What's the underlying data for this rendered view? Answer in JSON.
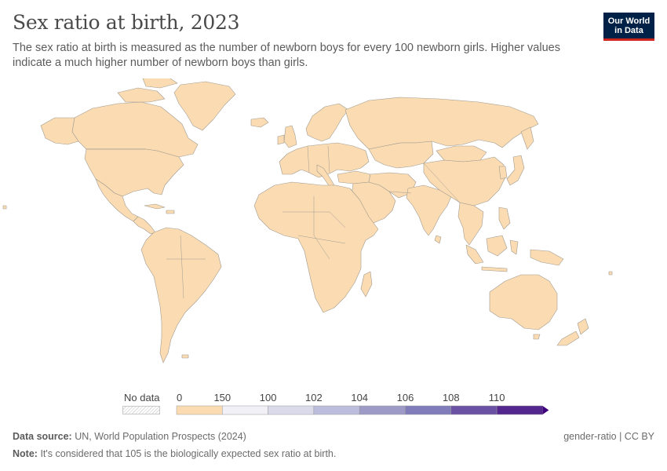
{
  "header": {
    "title": "Sex ratio at birth, 2023",
    "subtitle": "The sex ratio at birth is measured as the number of newborn boys for every 100 newborn girls. Higher values indicate a much higher number of newborn boys than girls."
  },
  "logo": {
    "line1": "Our World",
    "line2": "in Data"
  },
  "colors": {
    "land": "#fbdcb2",
    "border": "#a09a90",
    "ocean": "#ffffff"
  },
  "legend": {
    "no_data_label": "No data",
    "bins": [
      {
        "label": "0",
        "color": "#fbdcb2"
      },
      {
        "label": "150",
        "color": "#f2f0f7"
      },
      {
        "label": "100",
        "color": "#dadaeb"
      },
      {
        "label": "102",
        "color": "#bcbddc"
      },
      {
        "label": "104",
        "color": "#9e9ac8"
      },
      {
        "label": "106",
        "color": "#807dba"
      },
      {
        "label": "108",
        "color": "#6a51a3"
      },
      {
        "label": "110",
        "color": "#54278f"
      }
    ],
    "end_color": "#3f007d"
  },
  "footer": {
    "source_label": "Data source:",
    "source_text": "UN, World Population Prospects (2024)",
    "note_label": "Note:",
    "note_text": "It's considered that 105 is the biologically expected sex ratio at birth.",
    "license": "gender-ratio | CC BY"
  }
}
